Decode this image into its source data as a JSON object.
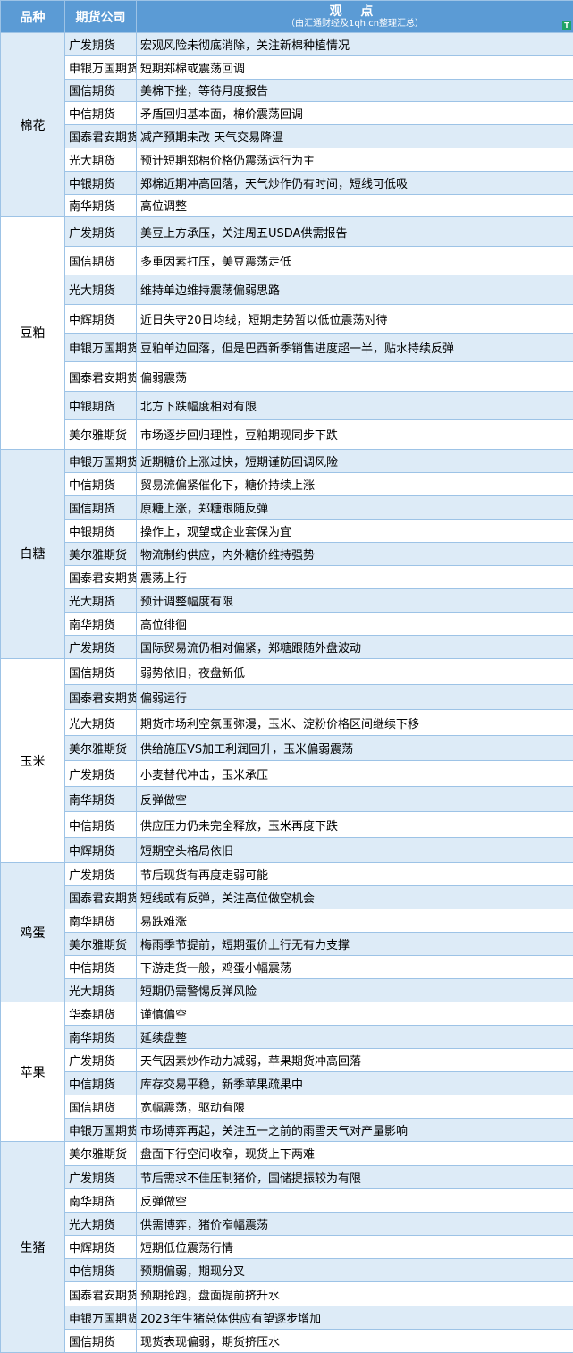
{
  "header": {
    "col1": "品种",
    "col2": "期货公司",
    "col3_title": "观  点",
    "col3_sub": "（由汇通财经及1qh.cn整理汇总）",
    "filter_icon": "filter-icon"
  },
  "colors": {
    "header": "#5b9bd5",
    "row_alt": "#ddebf7",
    "border": "#9dc3e6"
  },
  "groups": [
    {
      "name": "棉花",
      "rows": [
        [
          "广发期货",
          "宏观风险未彻底消除，关注新棉种植情况"
        ],
        [
          "申银万国期货",
          "短期郑棉或震荡回调"
        ],
        [
          "国信期货",
          "美棉下挫，等待月度报告"
        ],
        [
          "中信期货",
          "矛盾回归基本面，棉价震荡回调"
        ],
        [
          "国泰君安期货",
          "减产预期未改 天气交易降温"
        ],
        [
          "光大期货",
          "预计短期郑棉价格仍震荡运行为主"
        ],
        [
          "中银期货",
          "郑棉近期冲高回落，天气炒作仍有时间，短线可低吸"
        ],
        [
          "南华期货",
          "高位调整"
        ]
      ]
    },
    {
      "name": "豆粕",
      "rows": [
        [
          "广发期货",
          "美豆上方承压，关注周五USDA供需报告"
        ],
        [
          "国信期货",
          "多重因素打压，美豆震荡走低"
        ],
        [
          "光大期货",
          "维持单边维持震荡偏弱思路"
        ],
        [
          "中辉期货",
          "近日失守20日均线，短期走势暂以低位震荡对待"
        ],
        [
          "申银万国期货",
          "豆粕单边回落，但是巴西新季销售进度超一半，贴水持续反弹"
        ],
        [
          "国泰君安期货",
          "偏弱震荡"
        ],
        [
          "中银期货",
          "北方下跌幅度相对有限"
        ],
        [
          "美尔雅期货",
          "市场逐步回归理性，豆粕期现同步下跌"
        ]
      ]
    },
    {
      "name": "白糖",
      "rows": [
        [
          "申银万国期货",
          "近期糖价上涨过快，短期谨防回调风险"
        ],
        [
          "中信期货",
          "贸易流偏紧催化下，糖价持续上涨"
        ],
        [
          "国信期货",
          "原糖上涨，郑糖跟随反弹"
        ],
        [
          "中银期货",
          "操作上，观望或企业套保为宜"
        ],
        [
          "美尔雅期货",
          "物流制约供应，内外糖价维持强势"
        ],
        [
          "国泰君安期货",
          "震荡上行"
        ],
        [
          "光大期货",
          "预计调整幅度有限"
        ],
        [
          "南华期货",
          "高位徘徊"
        ],
        [
          "广发期货",
          "国际贸易流仍相对偏紧，郑糖跟随外盘波动"
        ]
      ]
    },
    {
      "name": "玉米",
      "rows": [
        [
          "国信期货",
          "弱势依旧，夜盘新低"
        ],
        [
          "国泰君安期货",
          "偏弱运行"
        ],
        [
          "光大期货",
          "期货市场利空氛围弥漫，玉米、淀粉价格区间继续下移"
        ],
        [
          "美尔雅期货",
          "供给施压VS加工利润回升，玉米偏弱震荡"
        ],
        [
          "广发期货",
          "小麦替代冲击，玉米承压"
        ],
        [
          "南华期货",
          "反弹做空"
        ],
        [
          "中信期货",
          "供应压力仍未完全释放，玉米再度下跌"
        ],
        [
          "中辉期货",
          "短期空头格局依旧"
        ]
      ]
    },
    {
      "name": "鸡蛋",
      "rows": [
        [
          "广发期货",
          "节后现货有再度走弱可能"
        ],
        [
          "国泰君安期货",
          "短线或有反弹，关注高位做空机会"
        ],
        [
          "南华期货",
          "易跌难涨"
        ],
        [
          "美尔雅期货",
          "梅雨季节提前，短期蛋价上行无有力支撑"
        ],
        [
          "中信期货",
          "下游走货一般，鸡蛋小幅震荡"
        ],
        [
          "光大期货",
          "短期仍需警惕反弹风险"
        ]
      ]
    },
    {
      "name": "苹果",
      "rows": [
        [
          "华泰期货",
          "谨慎偏空"
        ],
        [
          "南华期货",
          "延续盘整"
        ],
        [
          "广发期货",
          "天气因素炒作动力减弱，苹果期货冲高回落"
        ],
        [
          "中信期货",
          "库存交易平稳，新季苹果疏果中"
        ],
        [
          "国信期货",
          "宽幅震荡，驱动有限"
        ],
        [
          "申银万国期货",
          "市场博弈再起，关注五一之前的雨雪天气对产量影响"
        ]
      ]
    },
    {
      "name": "生猪",
      "rows": [
        [
          "美尔雅期货",
          "盘面下行空间收窄，现货上下两难"
        ],
        [
          "广发期货",
          "节后需求不佳压制猪价，国储提振较为有限"
        ],
        [
          "南华期货",
          "反弹做空"
        ],
        [
          "光大期货",
          "供需博弈，猪价窄幅震荡"
        ],
        [
          "中辉期货",
          "短期低位震荡行情"
        ],
        [
          "中信期货",
          "预期偏弱，期现分叉"
        ],
        [
          "国泰君安期货",
          "预期抢跑，盘面提前挤升水"
        ],
        [
          "申银万国期货",
          "2023年生猪总体供应有望逐步增加"
        ],
        [
          "国信期货",
          "现货表现偏弱，期货挤压水"
        ]
      ]
    }
  ]
}
